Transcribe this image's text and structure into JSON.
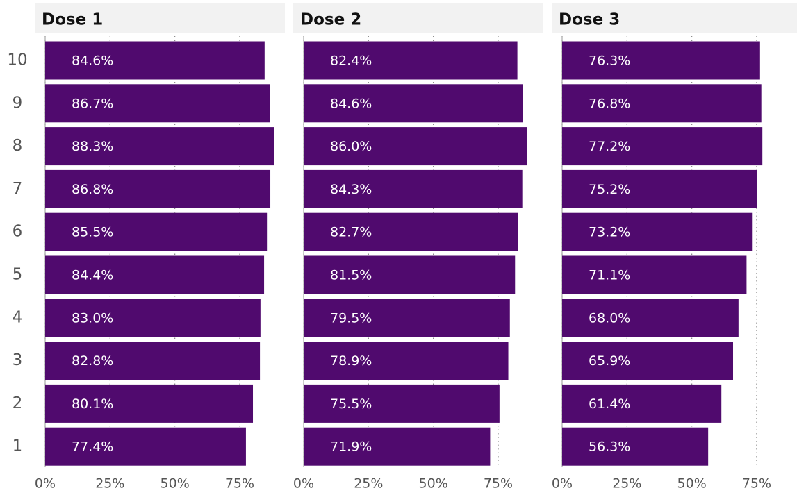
{
  "chart_data": [
    {
      "type": "bar",
      "orientation": "horizontal",
      "title": "Dose 1",
      "categories": [
        "10",
        "9",
        "8",
        "7",
        "6",
        "5",
        "4",
        "3",
        "2",
        "1"
      ],
      "values": [
        84.6,
        86.7,
        88.3,
        86.8,
        85.5,
        84.4,
        83.0,
        82.8,
        80.1,
        77.4
      ],
      "value_labels": [
        "84.6%",
        "86.7%",
        "88.3%",
        "86.8%",
        "85.5%",
        "84.4%",
        "83.0%",
        "82.8%",
        "80.1%",
        "77.4%"
      ],
      "color": "#500a6e",
      "xlim": [
        0,
        92
      ],
      "xticks": [
        {
          "value": 0,
          "label": "0%"
        },
        {
          "value": 25,
          "label": "25%"
        },
        {
          "value": 50,
          "label": "50%"
        },
        {
          "value": 75,
          "label": "75%"
        }
      ],
      "grid": true
    },
    {
      "type": "bar",
      "orientation": "horizontal",
      "title": "Dose 2",
      "values": [
        82.4,
        84.6,
        86.0,
        84.3,
        82.7,
        81.5,
        79.5,
        78.9,
        75.5,
        71.9
      ],
      "value_labels": [
        "82.4%",
        "84.6%",
        "86.0%",
        "84.3%",
        "82.7%",
        "81.5%",
        "79.5%",
        "78.9%",
        "75.5%",
        "71.9%"
      ],
      "color": "#500a6e",
      "xlim": [
        0,
        92
      ],
      "xticks": [
        {
          "value": 0,
          "label": "0%"
        },
        {
          "value": 25,
          "label": "25%"
        },
        {
          "value": 50,
          "label": "50%"
        },
        {
          "value": 75,
          "label": "75%"
        }
      ],
      "grid": true
    },
    {
      "type": "bar",
      "orientation": "horizontal",
      "title": "Dose 3",
      "values": [
        76.3,
        76.8,
        77.2,
        75.2,
        73.2,
        71.1,
        68.0,
        65.9,
        61.4,
        56.3
      ],
      "value_labels": [
        "76.3%",
        "76.8%",
        "77.2%",
        "75.2%",
        "73.2%",
        "71.1%",
        "68.0%",
        "65.9%",
        "61.4%",
        "56.3%"
      ],
      "color": "#500a6e",
      "xlim": [
        0,
        92
      ],
      "xticks": [
        {
          "value": 0,
          "label": "0%"
        },
        {
          "value": 25,
          "label": "25%"
        },
        {
          "value": 50,
          "label": "50%"
        },
        {
          "value": 75,
          "label": "75%"
        }
      ],
      "grid": true
    }
  ]
}
